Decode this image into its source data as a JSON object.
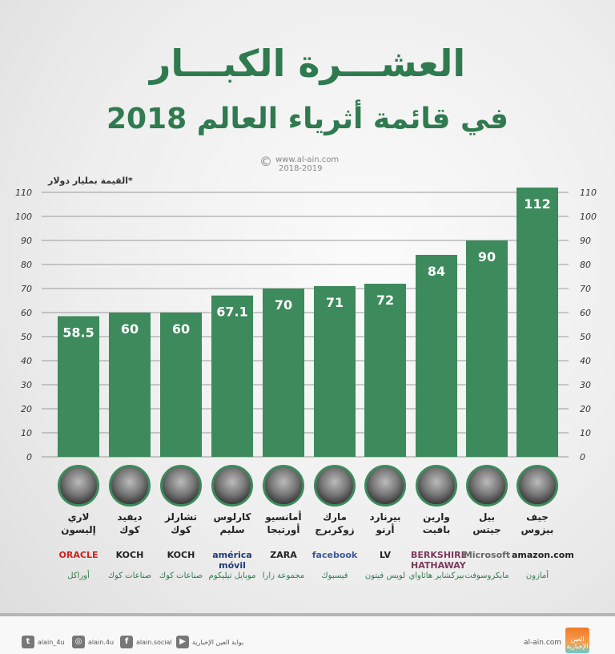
{
  "title": "العشـــرة الكبـــار",
  "subtitle": "في قائمة أثرياء العالم 2018",
  "copyright": {
    "symbol": "©",
    "site": "www.al-ain.com",
    "years": "2018-2019"
  },
  "chart_data": {
    "type": "bar",
    "ylabel": "*القيمة بمليار دولار",
    "ylim": [
      0,
      110
    ],
    "yticks": [
      0,
      10,
      20,
      30,
      40,
      50,
      60,
      70,
      80,
      90,
      100,
      110
    ],
    "grid": true,
    "bar_color": "#3d8a5c",
    "categories": [
      "لاري إليسون",
      "ديفيد كوك",
      "تشارلز كوك",
      "كارلوس سليم",
      "أمانسيو أورتيجا",
      "مارك زوكربرج",
      "بيرنارد أرنو",
      "وارين بافيت",
      "بيل جيتس",
      "جيف بيزوس"
    ],
    "values": [
      58.5,
      60,
      60,
      67.1,
      70,
      71,
      72,
      84,
      90,
      112
    ],
    "value_labels": [
      "58.5",
      "60",
      "60",
      "67.1",
      "70",
      "71",
      "72",
      "84",
      "90",
      "112"
    ]
  },
  "people": [
    {
      "name1": "لاري",
      "name2": "إليسون",
      "logo": "ORACLE",
      "logo_color": "#d0201c",
      "company": "أوراكل"
    },
    {
      "name1": "ديفيد",
      "name2": "كوك",
      "logo": "KOCH",
      "logo_color": "#222222",
      "company": "صناعات كوك"
    },
    {
      "name1": "تشارلز",
      "name2": "كوك",
      "logo": "KOCH",
      "logo_color": "#222222",
      "company": "صناعات كوك"
    },
    {
      "name1": "كارلوس",
      "name2": "سليم",
      "logo": "américa móvil",
      "logo_color": "#1f3a7a",
      "company": "موبايل تيليكوم"
    },
    {
      "name1": "أمانسيو",
      "name2": "أورتيجا",
      "logo": "ZARA",
      "logo_color": "#222222",
      "company": "مجموعة زارا"
    },
    {
      "name1": "مارك",
      "name2": "زوكربرج",
      "logo": "facebook",
      "logo_color": "#3b5998",
      "company": "فيسبوك"
    },
    {
      "name1": "بيرنارد",
      "name2": "أرنو",
      "logo": "LV",
      "logo_color": "#222222",
      "company": "لويس فيتون"
    },
    {
      "name1": "وارين",
      "name2": "بافيت",
      "logo": "BERKSHIRE HATHAWAY",
      "logo_color": "#7a3b5a",
      "company": "بيركشاير هاثاواي"
    },
    {
      "name1": "بيل",
      "name2": "جيتس",
      "logo": "Microsoft",
      "logo_color": "#666666",
      "company": "مايكروسوفت"
    },
    {
      "name1": "جيف",
      "name2": "بيزوس",
      "logo": "amazon.com",
      "logo_color": "#222222",
      "company": "أمازون"
    }
  ],
  "footer": {
    "twitter": "alain_4u",
    "instagram": "alain.4u",
    "facebook": "alain.social",
    "youtube": "بوابة العين الإخبارية",
    "site": "al-ain.com",
    "brand": "العين الإخبارية"
  }
}
